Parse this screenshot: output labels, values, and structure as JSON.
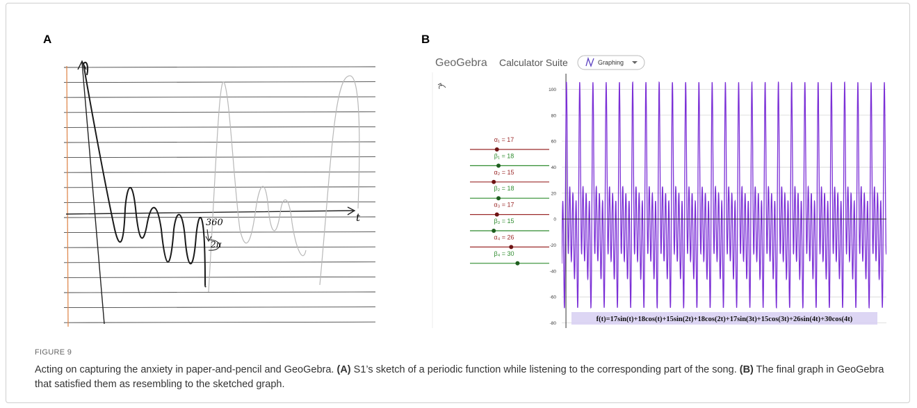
{
  "panels": [
    {
      "label": "A",
      "annotations": [
        "360",
        "2π",
        "t"
      ]
    },
    {
      "label": "B",
      "app": {
        "brand": "GeoGebra",
        "suite": "Calculator Suite",
        "mode": "Graphing"
      },
      "sliders": [
        {
          "label": "α₁ = 17",
          "value": 17,
          "color": "#9b2a2a"
        },
        {
          "label": "β₁ = 18",
          "value": 18,
          "color": "#2e8b2e"
        },
        {
          "label": "α₂ = 15",
          "value": 15,
          "color": "#9b2a2a"
        },
        {
          "label": "β₂ = 18",
          "value": 18,
          "color": "#2e8b2e"
        },
        {
          "label": "α₃ = 17",
          "value": 17,
          "color": "#9b2a2a"
        },
        {
          "label": "β₃ = 15",
          "value": 15,
          "color": "#2e8b2e"
        },
        {
          "label": "α₄ = 26",
          "value": 26,
          "color": "#9b2a2a"
        },
        {
          "label": "β₄ = 30",
          "value": 30,
          "color": "#2e8b2e"
        }
      ],
      "slider_lim": [
        0,
        50
      ],
      "graph": {
        "xlim": [
          -2,
          152
        ],
        "ylim": [
          -84,
          112
        ],
        "yticks": [
          100,
          80,
          60,
          40,
          20,
          0,
          -20,
          -40,
          -60,
          -80
        ],
        "color": "#7b2fd6",
        "function": "f(t)=17sin(t)+18cos(t)+15sin(2t)+18cos(2t)+17sin(3t)+15cos(3t)+26sin(4t)+30cos(4t)"
      }
    }
  ],
  "caption": {
    "figure_label": "FIGURE 9",
    "title": "Acting on capturing the anxiety in paper-and-pencil and GeoGebra.",
    "parts": [
      {
        "tag": "(A)",
        "text": " S1’s sketch of a periodic function while listening to the corresponding part of the song."
      },
      {
        "tag": "(B)",
        "text": " The final graph in GeoGebra that satisfied them as resembling to the sketched graph."
      }
    ]
  }
}
